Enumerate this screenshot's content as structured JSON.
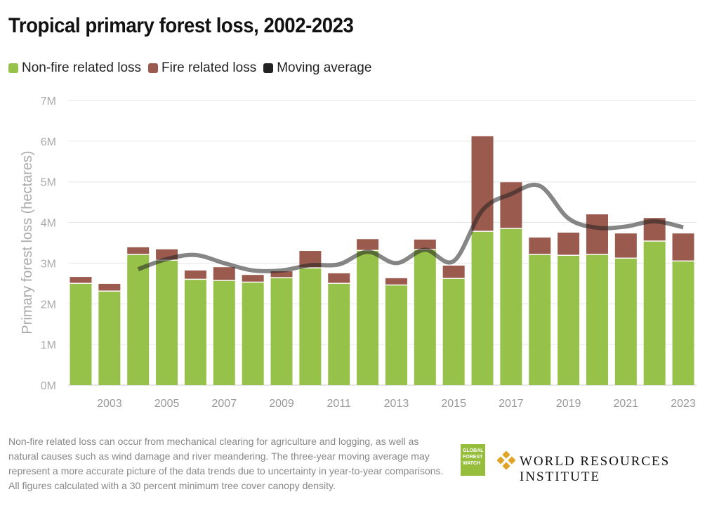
{
  "chart_data": {
    "type": "bar",
    "stacked": true,
    "title": "Tropical primary forest loss, 2002-2023",
    "ylabel": "Primary forest loss (hectares)",
    "xlabel": "",
    "ylim": [
      0,
      7000000
    ],
    "y_ticks": [
      "0M",
      "1M",
      "2M",
      "3M",
      "4M",
      "5M",
      "6M",
      "7M"
    ],
    "x_tick_labels": [
      "2003",
      "2005",
      "2007",
      "2009",
      "2011",
      "2013",
      "2015",
      "2017",
      "2019",
      "2021",
      "2023"
    ],
    "grid": true,
    "legend_position": "top-left",
    "categories": [
      2002,
      2003,
      2004,
      2005,
      2006,
      2007,
      2008,
      2009,
      2010,
      2011,
      2012,
      2013,
      2014,
      2015,
      2016,
      2017,
      2018,
      2019,
      2020,
      2021,
      2022,
      2023
    ],
    "series": [
      {
        "name": "Non-fire related loss",
        "color": "#97c24a",
        "type": "bar",
        "values": [
          2.49,
          2.3,
          3.2,
          3.06,
          2.59,
          2.56,
          2.52,
          2.63,
          2.87,
          2.49,
          3.3,
          2.45,
          3.32,
          2.61,
          3.77,
          3.84,
          3.2,
          3.18,
          3.2,
          3.11,
          3.53,
          3.04
        ]
      },
      {
        "name": "Fire related loss",
        "color": "#9b5a4e",
        "type": "bar",
        "values": [
          0.17,
          0.19,
          0.19,
          0.28,
          0.23,
          0.34,
          0.19,
          0.17,
          0.43,
          0.26,
          0.29,
          0.18,
          0.26,
          0.33,
          2.35,
          1.15,
          0.43,
          0.57,
          1.0,
          0.62,
          0.58,
          0.69
        ]
      },
      {
        "name": "Moving average",
        "color": "#222222",
        "type": "line",
        "x": [
          2004,
          2005,
          2006,
          2007,
          2008,
          2009,
          2010,
          2011,
          2012,
          2013,
          2014,
          2015,
          2016,
          2017,
          2018,
          2019,
          2020,
          2021,
          2022,
          2023
        ],
        "values": [
          2.85,
          3.1,
          3.2,
          3.0,
          2.82,
          2.82,
          2.95,
          2.97,
          3.28,
          3.0,
          3.33,
          3.05,
          4.3,
          4.7,
          4.9,
          4.1,
          3.87,
          3.9,
          4.03,
          3.88
        ]
      }
    ],
    "value_unit": "million hectares"
  },
  "footer": {
    "note": "Non-fire related loss can occur from mechanical clearing for agriculture and logging, as well as natural causes such as wind damage and river meandering. The three-year moving average may represent a more accurate picture of the data trends due to uncertainty in year-to-year comparisons. All figures calculated with a 30 percent minimum tree cover canopy density.",
    "gfw_logo": "GLOBAL FOREST WATCH",
    "wri_logo": "WORLD RESOURCES INSTITUTE"
  }
}
